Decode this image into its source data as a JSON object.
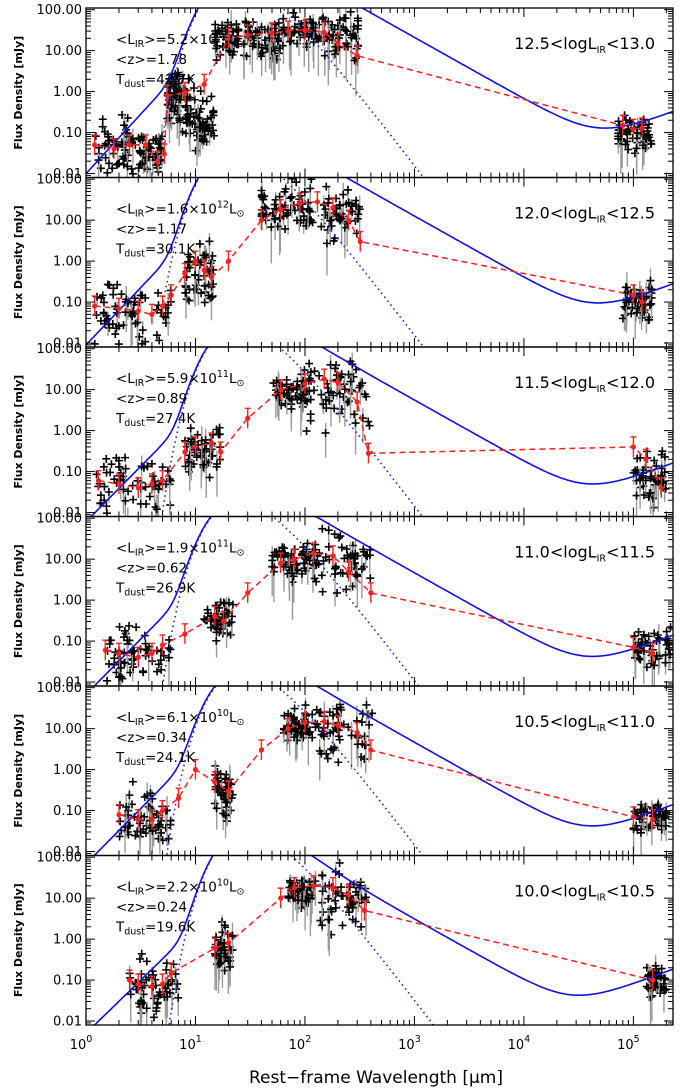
{
  "chart_data": {
    "type": "scatter",
    "xlabel": "Rest−frame Wavelength [μm]",
    "ylabel": "Flux Density [mJy]",
    "x_scale": "log",
    "y_scale": "log",
    "xlim": [
      1,
      230000
    ],
    "ylim": [
      0.008,
      110
    ],
    "x_ticks": [
      {
        "value": 1,
        "mantissa": "10",
        "exp": "0"
      },
      {
        "value": 10,
        "mantissa": "10",
        "exp": "1"
      },
      {
        "value": 100,
        "mantissa": "10",
        "exp": "2"
      },
      {
        "value": 1000,
        "mantissa": "10",
        "exp": "3"
      },
      {
        "value": 10000,
        "mantissa": "10",
        "exp": "4"
      },
      {
        "value": 100000,
        "mantissa": "10",
        "exp": "5"
      }
    ],
    "y_ticks": [
      {
        "value": 0.01,
        "label": "0.01"
      },
      {
        "value": 0.1,
        "label": "0.10"
      },
      {
        "value": 1,
        "label": "1.00"
      },
      {
        "value": 10,
        "label": "10.00"
      },
      {
        "value": 100,
        "label": "100.00"
      }
    ],
    "panels": [
      {
        "lir_mant": "5.2",
        "lir_exp": "12",
        "z": "1.78",
        "tdust": "42.7K",
        "range_lo": "12.5",
        "range_hi": "13.0",
        "model": {
          "amp": 30,
          "peak": 100,
          "beta": 1.5,
          "mir_amp": 0.01,
          "mir_slope": 2.9,
          "rj_amp": 0.14,
          "rj_slope": 1.0
        },
        "greybody": {
          "amp": 30,
          "peak": 100,
          "beta": 1.5
        },
        "median": [
          [
            1.2,
            0.05
          ],
          [
            1.8,
            0.04
          ],
          [
            2.5,
            0.05
          ],
          [
            3.5,
            0.05
          ],
          [
            4.5,
            0.02
          ],
          [
            5.2,
            0.03
          ],
          [
            5.5,
            0.8
          ],
          [
            8,
            0.95
          ],
          [
            12,
            1.5
          ],
          [
            20,
            20
          ],
          [
            30,
            24
          ],
          [
            50,
            27
          ],
          [
            70,
            30
          ],
          [
            100,
            32
          ],
          [
            150,
            28
          ],
          [
            200,
            15
          ],
          [
            300,
            7.5
          ],
          [
            80000,
            0.15
          ],
          [
            100000,
            0.12
          ],
          [
            120000,
            0.13
          ]
        ],
        "clusters": [
          [
            1.2,
            3.2,
            0.04,
            1.0
          ],
          [
            3,
            5,
            0.03,
            0.9
          ],
          [
            5.5,
            7,
            0.9,
            0.8
          ],
          [
            7,
            10,
            0.4,
            1.0
          ],
          [
            10,
            15,
            0.15,
            0.8
          ],
          [
            15,
            25,
            20,
            0.6
          ],
          [
            25,
            60,
            18,
            0.7
          ],
          [
            60,
            130,
            30,
            0.5
          ],
          [
            130,
            320,
            20,
            0.9
          ],
          [
            70000,
            150000,
            0.1,
            0.6
          ]
        ]
      },
      {
        "lir_mant": "1.6",
        "lir_exp": "12",
        "z": "1.17",
        "tdust": "30.1K",
        "range_lo": "12.0",
        "range_hi": "12.5",
        "model": {
          "amp": 30,
          "peak": 100,
          "beta": 1.5,
          "mir_amp": 0.009,
          "mir_slope": 2.8,
          "rj_amp": 0.12,
          "rj_slope": 1.0
        },
        "greybody": {
          "amp": 30,
          "peak": 100,
          "beta": 1.5
        },
        "median": [
          [
            1.2,
            0.08
          ],
          [
            2,
            0.07
          ],
          [
            3,
            0.06
          ],
          [
            4,
            0.05
          ],
          [
            5,
            0.08
          ],
          [
            6,
            0.15
          ],
          [
            8,
            0.5
          ],
          [
            10,
            1.0
          ],
          [
            12,
            0.6
          ],
          [
            14,
            0.4
          ],
          [
            20,
            1.0
          ],
          [
            40,
            10
          ],
          [
            60,
            18
          ],
          [
            90,
            26
          ],
          [
            130,
            28
          ],
          [
            180,
            20
          ],
          [
            250,
            10
          ],
          [
            320,
            3
          ],
          [
            100000,
            0.15
          ],
          [
            120000,
            0.1
          ]
        ],
        "clusters": [
          [
            1.2,
            6,
            0.05,
            1.0
          ],
          [
            8,
            15,
            0.5,
            1.0
          ],
          [
            40,
            100,
            20,
            0.7
          ],
          [
            100,
            330,
            15,
            1.0
          ],
          [
            80000,
            150000,
            0.1,
            0.6
          ]
        ]
      },
      {
        "lir_mant": "5.9",
        "lir_exp": "11",
        "z": "0.89",
        "tdust": "27.4K",
        "range_lo": "11.5",
        "range_hi": "12.0",
        "model": {
          "amp": 20,
          "peak": 110,
          "beta": 1.5,
          "mir_amp": 0.006,
          "mir_slope": 2.7,
          "rj_amp": 0.07,
          "rj_slope": 1.0
        },
        "greybody": {
          "amp": 20,
          "peak": 110,
          "beta": 1.5
        },
        "median": [
          [
            1.3,
            0.06
          ],
          [
            2,
            0.05
          ],
          [
            3,
            0.04
          ],
          [
            4,
            0.05
          ],
          [
            5,
            0.06
          ],
          [
            8,
            0.3
          ],
          [
            10,
            0.4
          ],
          [
            14,
            0.5
          ],
          [
            17,
            0.3
          ],
          [
            30,
            2
          ],
          [
            60,
            10
          ],
          [
            100,
            14
          ],
          [
            150,
            18
          ],
          [
            200,
            15
          ],
          [
            300,
            5
          ],
          [
            380,
            0.28
          ],
          [
            100000,
            0.4
          ],
          [
            130000,
            0.2
          ],
          [
            180000,
            0.04
          ]
        ],
        "clusters": [
          [
            1.2,
            6,
            0.05,
            1.0
          ],
          [
            8,
            17,
            0.35,
            0.8
          ],
          [
            50,
            100,
            10,
            0.5
          ],
          [
            100,
            400,
            8,
            1.2
          ],
          [
            100000,
            200000,
            0.1,
            0.8
          ]
        ]
      },
      {
        "lir_mant": "1.9",
        "lir_exp": "11",
        "z": "0.62",
        "tdust": "26.9K",
        "range_lo": "11.0",
        "range_hi": "11.5",
        "model": {
          "amp": 15,
          "peak": 110,
          "beta": 1.5,
          "mir_amp": 0.005,
          "mir_slope": 2.7,
          "rj_amp": 0.06,
          "rj_slope": 1.0
        },
        "greybody": {
          "amp": 15,
          "peak": 110,
          "beta": 1.5
        },
        "median": [
          [
            1.5,
            0.06
          ],
          [
            2,
            0.05
          ],
          [
            3,
            0.04
          ],
          [
            4,
            0.05
          ],
          [
            5,
            0.08
          ],
          [
            8,
            0.15
          ],
          [
            15,
            0.4
          ],
          [
            18,
            0.3
          ],
          [
            30,
            1.5
          ],
          [
            60,
            8
          ],
          [
            80,
            10
          ],
          [
            120,
            14
          ],
          [
            180,
            12
          ],
          [
            250,
            5
          ],
          [
            400,
            1.5
          ],
          [
            100000,
            0.07
          ],
          [
            150000,
            0.05
          ]
        ],
        "clusters": [
          [
            1.5,
            6,
            0.05,
            0.9
          ],
          [
            12,
            22,
            0.3,
            0.8
          ],
          [
            50,
            120,
            9,
            0.6
          ],
          [
            120,
            400,
            8,
            1.0
          ],
          [
            100000,
            220000,
            0.07,
            0.6
          ]
        ]
      },
      {
        "lir_mant": "6.1",
        "lir_exp": "10",
        "z": "0.34",
        "tdust": "24.1K",
        "range_lo": "10.5",
        "range_hi": "11.0",
        "model": {
          "amp": 15,
          "peak": 120,
          "beta": 1.5,
          "mir_amp": 0.005,
          "mir_slope": 2.7,
          "rj_amp": 0.06,
          "rj_slope": 1.0
        },
        "greybody": {
          "amp": 15,
          "peak": 120,
          "beta": 1.5
        },
        "median": [
          [
            2,
            0.08
          ],
          [
            3,
            0.06
          ],
          [
            4,
            0.06
          ],
          [
            5,
            0.1
          ],
          [
            7,
            0.2
          ],
          [
            10,
            1.0
          ],
          [
            15,
            0.5
          ],
          [
            20,
            0.3
          ],
          [
            40,
            3
          ],
          [
            70,
            10
          ],
          [
            100,
            14
          ],
          [
            150,
            15
          ],
          [
            200,
            12
          ],
          [
            300,
            8
          ],
          [
            400,
            3
          ],
          [
            100000,
            0.07
          ],
          [
            150000,
            0.06
          ]
        ],
        "clusters": [
          [
            2,
            6,
            0.06,
            0.9
          ],
          [
            15,
            22,
            0.3,
            0.8
          ],
          [
            60,
            110,
            12,
            0.5
          ],
          [
            110,
            420,
            10,
            1.0
          ],
          [
            100000,
            200000,
            0.07,
            0.5
          ]
        ]
      },
      {
        "lir_mant": "2.2",
        "lir_exp": "10",
        "z": "0.24",
        "tdust": "19.6K",
        "range_lo": "10.0",
        "range_hi": "10.5",
        "model": {
          "amp": 25,
          "peak": 130,
          "beta": 1.5,
          "mir_amp": 0.005,
          "mir_slope": 2.6,
          "rj_amp": 0.08,
          "rj_slope": 1.0
        },
        "greybody": {
          "amp": 25,
          "peak": 130,
          "beta": 1.5
        },
        "median": [
          [
            2.5,
            0.1
          ],
          [
            3,
            0.08
          ],
          [
            4,
            0.07
          ],
          [
            5,
            0.08
          ],
          [
            6,
            0.15
          ],
          [
            15,
            0.6
          ],
          [
            20,
            0.8
          ],
          [
            60,
            10
          ],
          [
            80,
            18
          ],
          [
            120,
            20
          ],
          [
            180,
            18
          ],
          [
            250,
            12
          ],
          [
            350,
            5
          ],
          [
            150000,
            0.1
          ]
        ],
        "clusters": [
          [
            2.5,
            7,
            0.07,
            0.9
          ],
          [
            15,
            22,
            0.5,
            0.7
          ],
          [
            70,
            120,
            15,
            0.5
          ],
          [
            120,
            400,
            10,
            1.0
          ],
          [
            130000,
            200000,
            0.09,
            0.5
          ]
        ]
      }
    ]
  }
}
